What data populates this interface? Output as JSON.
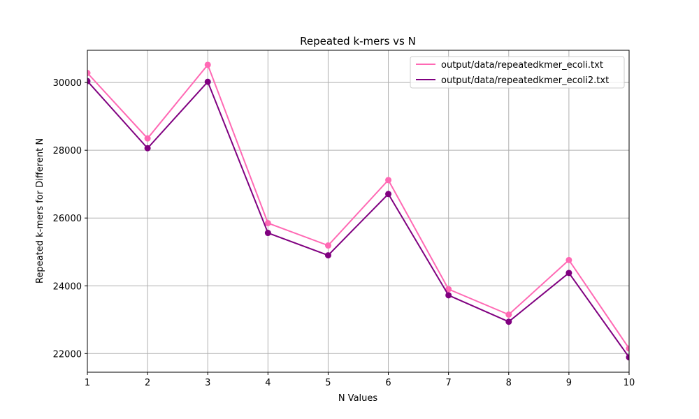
{
  "chart_data": {
    "type": "line",
    "title": "Repeated k-mers vs N",
    "xlabel": "N Values",
    "ylabel": "Repeated k-mers for Different N",
    "x": [
      1,
      2,
      3,
      4,
      5,
      6,
      7,
      8,
      9,
      10
    ],
    "xlim": [
      1,
      10
    ],
    "ylim": [
      21450,
      30950
    ],
    "x_ticks": [
      "1",
      "2",
      "3",
      "4",
      "5",
      "6",
      "7",
      "8",
      "9",
      "10"
    ],
    "y_ticks": [
      "22000",
      "24000",
      "26000",
      "28000",
      "30000"
    ],
    "y_tick_values": [
      22000,
      24000,
      26000,
      28000,
      30000
    ],
    "grid": true,
    "legend_position": "top-right",
    "series": [
      {
        "name": "output/data/repeatedkmer_ecoli.txt",
        "color": "#ff69b4",
        "marker": "circle",
        "values": [
          30280,
          28350,
          30520,
          25850,
          25190,
          27120,
          23900,
          23150,
          24760,
          22150
        ]
      },
      {
        "name": "output/data/repeatedkmer_ecoli2.txt",
        "color": "#800080",
        "marker": "circle",
        "values": [
          30040,
          28060,
          30020,
          25560,
          24900,
          26710,
          23720,
          22940,
          24380,
          21890
        ]
      }
    ]
  }
}
